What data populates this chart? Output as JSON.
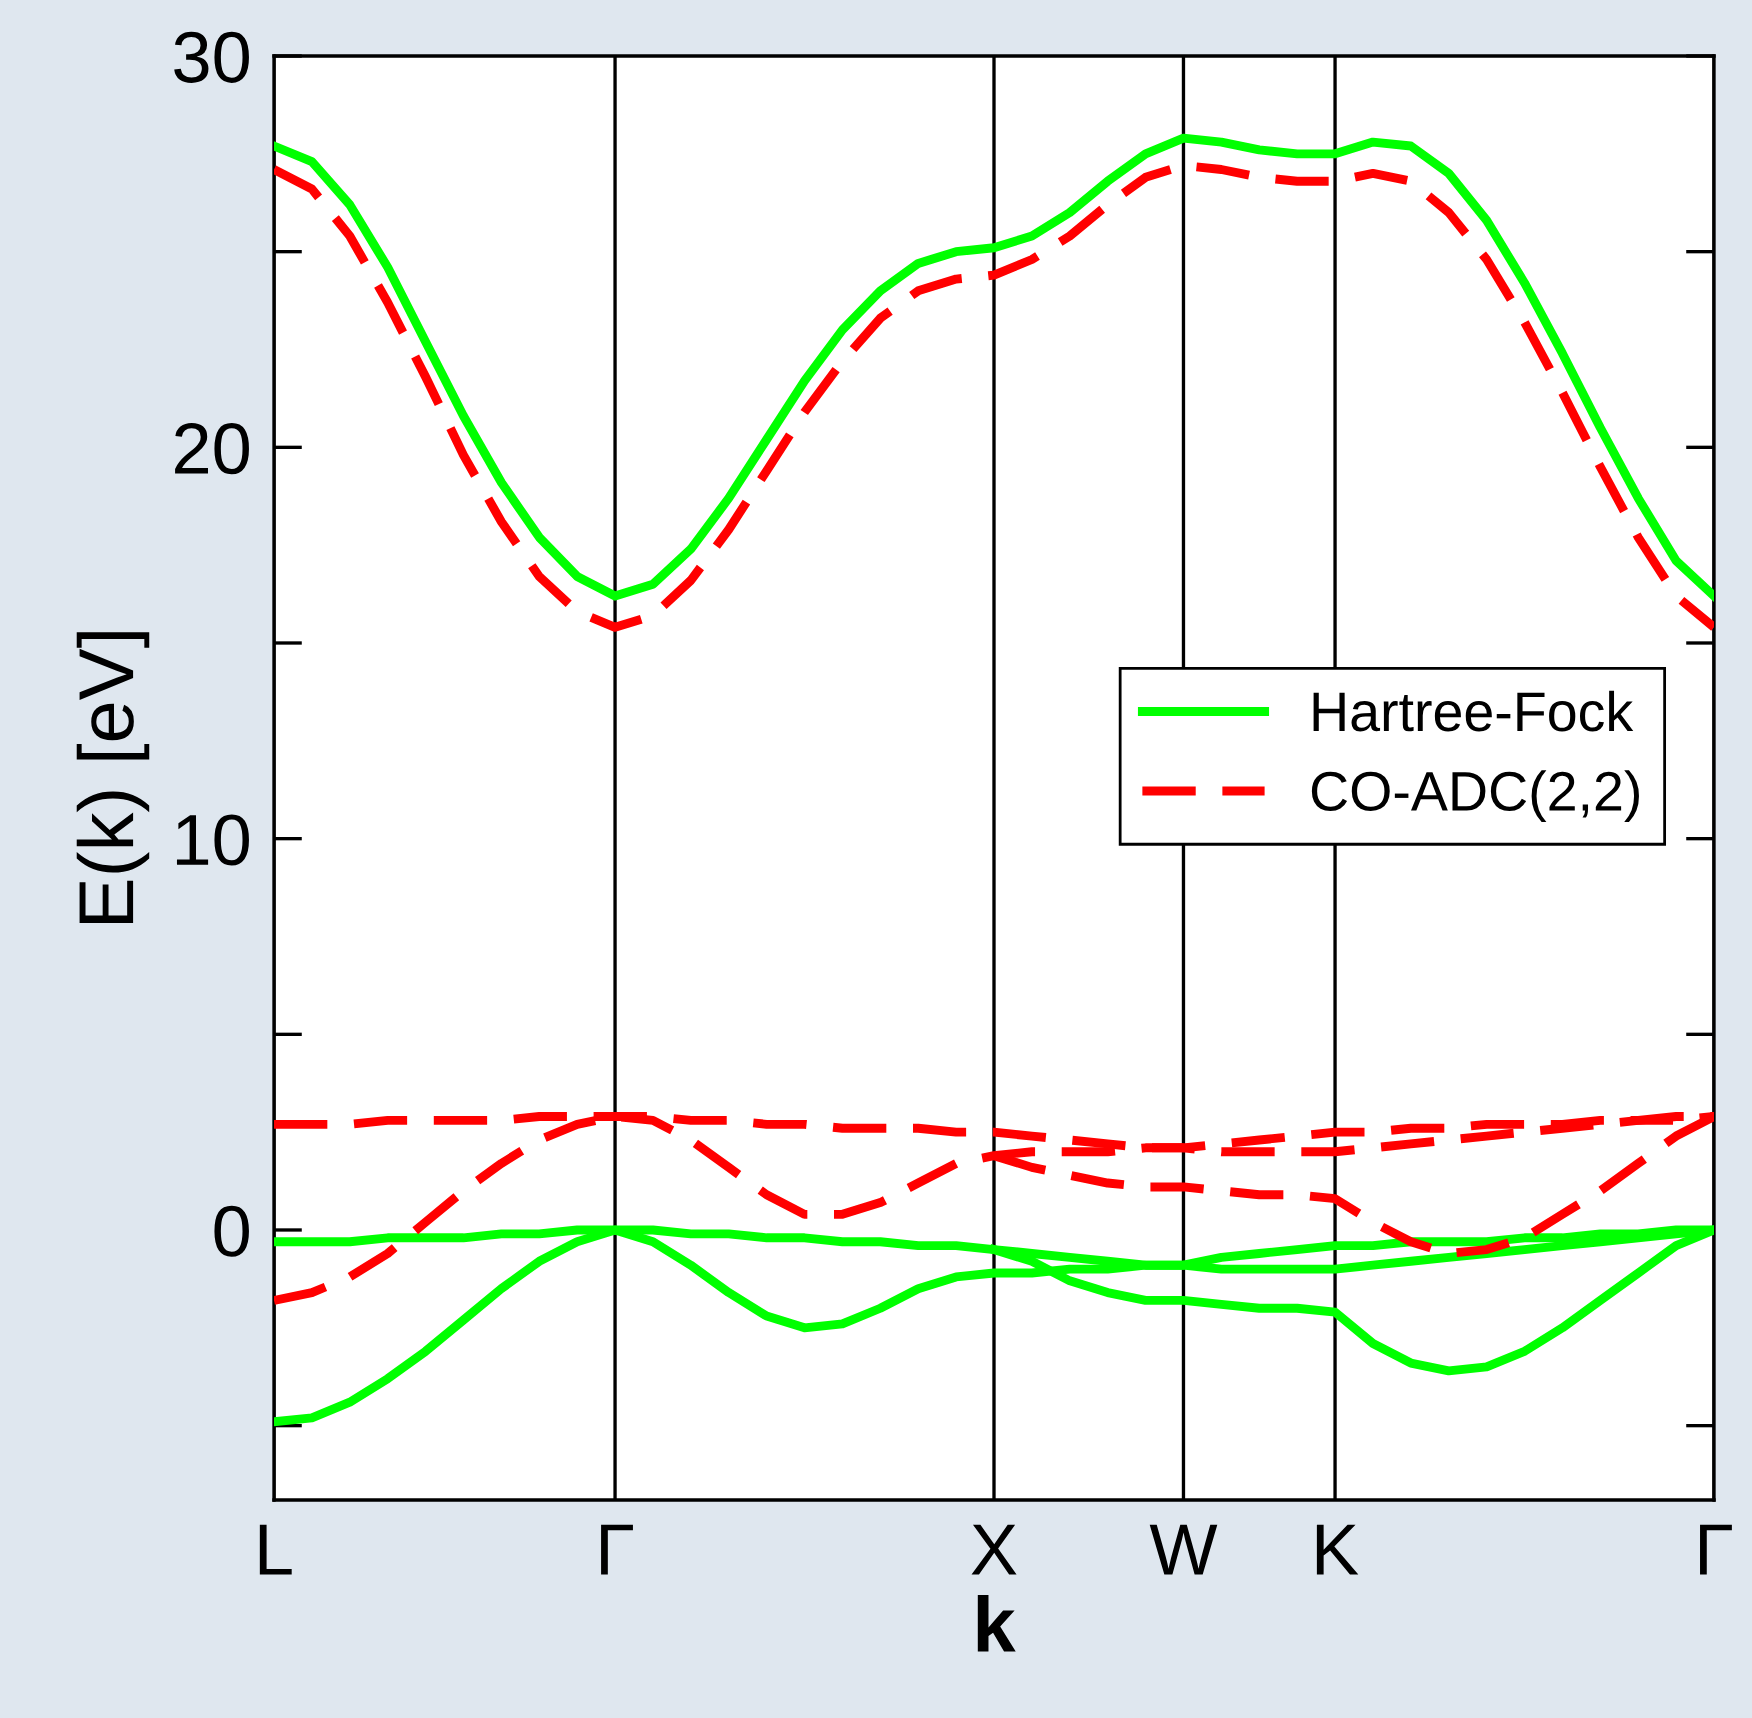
{
  "chart_data": {
    "type": "line",
    "xlabel": "k",
    "ylabel": "E(k) [eV]",
    "categories": [
      "L",
      null,
      null,
      null,
      null,
      null,
      null,
      null,
      null,
      "Γ",
      null,
      null,
      null,
      null,
      null,
      null,
      null,
      null,
      null,
      "X",
      null,
      null,
      null,
      null,
      "W",
      null,
      null,
      null,
      "K",
      null,
      null,
      null,
      null,
      null,
      null,
      null,
      null,
      null,
      "Γ"
    ],
    "ylim": [
      -6.9,
      30
    ],
    "yticks": [
      {
        "value": -5,
        "label": null
      },
      0,
      {
        "value": 5,
        "label": null
      },
      10,
      {
        "value": 15,
        "label": null
      },
      20,
      {
        "value": 25,
        "label": null
      },
      30
    ],
    "grid": "x",
    "legend": "right",
    "marker": "none",
    "series": [
      {
        "name": "Hartree-Fock",
        "color": "#00ff00",
        "line_style": "solid",
        "values": [
          27.7,
          27.3,
          26.2,
          24.6,
          22.7,
          20.8,
          19.1,
          17.7,
          16.7,
          16.2,
          16.5,
          17.4,
          18.7,
          20.2,
          21.7,
          23.0,
          24.0,
          24.7,
          25.0,
          25.1,
          25.4,
          26.0,
          26.8,
          27.5,
          27.9,
          27.8,
          27.6,
          27.5,
          27.5,
          27.8,
          27.7,
          27.0,
          25.8,
          24.2,
          22.4,
          20.5,
          18.7,
          17.1,
          16.2
        ]
      },
      {
        "name": "CO-ADC(2,2)",
        "color": "#ff0000",
        "line_style": "dashed",
        "values": [
          27.1,
          26.6,
          25.4,
          23.7,
          21.8,
          19.8,
          18.1,
          16.7,
          15.8,
          15.4,
          15.7,
          16.6,
          17.9,
          19.4,
          20.9,
          22.2,
          23.3,
          24.0,
          24.3,
          24.4,
          24.8,
          25.4,
          26.2,
          26.9,
          27.2,
          27.1,
          26.9,
          26.8,
          26.8,
          27.0,
          26.8,
          26.0,
          24.8,
          23.2,
          21.4,
          19.5,
          17.7,
          16.2,
          15.4
        ]
      },
      {
        "color": "#00ff00",
        "line_style": "solid",
        "values": [
          -0.3,
          -0.3,
          -0.3,
          -0.2,
          -0.2,
          -0.2,
          -0.1,
          -0.1,
          0,
          0,
          0,
          -0.1,
          -0.1,
          -0.2,
          -0.2,
          -0.3,
          -0.3,
          -0.4,
          -0.4,
          -0.5,
          -0.6,
          -0.7,
          -0.8,
          -0.9,
          -0.9,
          -0.7,
          -0.6,
          -0.5,
          -0.4,
          -0.4,
          -0.3,
          -0.3,
          -0.3,
          -0.2,
          -0.2,
          -0.1,
          -0.1,
          0,
          0
        ]
      },
      {
        "color": "#00ff00",
        "line_style": "solid",
        "values": [
          -4.9,
          -4.8,
          -4.4,
          -3.8,
          -3.1,
          -2.3,
          -1.5,
          -0.8,
          -0.3,
          0,
          -0.3,
          -0.9,
          -1.6,
          -2.2,
          -2.5,
          -2.4,
          -2.0,
          -1.5,
          -1.2,
          -1.1,
          -1.1,
          -1.0,
          -1.0,
          -0.9,
          -0.9,
          -1.0,
          -1.0,
          -1.0,
          -1.0,
          -0.9,
          -0.8,
          -0.7,
          -0.6,
          -0.5,
          -0.4,
          -0.3,
          -0.2,
          -0.1,
          0
        ]
      },
      {
        "color": "#00ff00",
        "line_style": "solid",
        "values": [
          null,
          null,
          null,
          null,
          null,
          null,
          null,
          null,
          null,
          null,
          null,
          null,
          null,
          null,
          null,
          null,
          null,
          null,
          null,
          -0.5,
          -0.8,
          -1.3,
          -1.6,
          -1.8,
          -1.8,
          -1.9,
          -2.0,
          -2.0,
          -2.1,
          -2.9,
          -3.4,
          -3.6,
          -3.5,
          -3.1,
          -2.5,
          -1.8,
          -1.1,
          -0.4,
          0
        ]
      },
      {
        "color": "#ff0000",
        "line_style": "dashed",
        "values": [
          2.7,
          2.7,
          2.7,
          2.8,
          2.8,
          2.8,
          2.8,
          2.9,
          2.9,
          2.9,
          2.9,
          2.8,
          2.8,
          2.7,
          2.7,
          2.6,
          2.6,
          2.6,
          2.5,
          2.5,
          2.4,
          2.3,
          2.2,
          2.1,
          2.1,
          2.2,
          2.3,
          2.4,
          2.5,
          2.5,
          2.6,
          2.6,
          2.7,
          2.7,
          2.7,
          2.8,
          2.8,
          2.9,
          2.9
        ]
      },
      {
        "color": "#ff0000",
        "line_style": "dashed",
        "values": [
          -1.8,
          -1.6,
          -1.2,
          -0.6,
          0.2,
          1.0,
          1.7,
          2.3,
          2.7,
          2.9,
          2.8,
          2.3,
          1.6,
          0.9,
          0.4,
          0.4,
          0.7,
          1.2,
          1.7,
          1.9,
          2.0,
          2.0,
          2.0,
          2.1,
          2.1,
          2.0,
          2.0,
          2.0,
          2.0,
          2.1,
          2.2,
          2.3,
          2.4,
          2.5,
          2.6,
          2.7,
          2.8,
          2.8,
          2.9
        ]
      },
      {
        "color": "#ff0000",
        "line_style": "dashed",
        "values": [
          null,
          null,
          null,
          null,
          null,
          null,
          null,
          null,
          null,
          null,
          null,
          null,
          null,
          null,
          null,
          null,
          null,
          null,
          null,
          1.9,
          1.6,
          1.4,
          1.2,
          1.1,
          1.1,
          1.0,
          0.9,
          0.9,
          0.8,
          0.2,
          -0.3,
          -0.6,
          -0.5,
          -0.2,
          0.4,
          1.0,
          1.7,
          2.4,
          2.9
        ]
      }
    ]
  }
}
